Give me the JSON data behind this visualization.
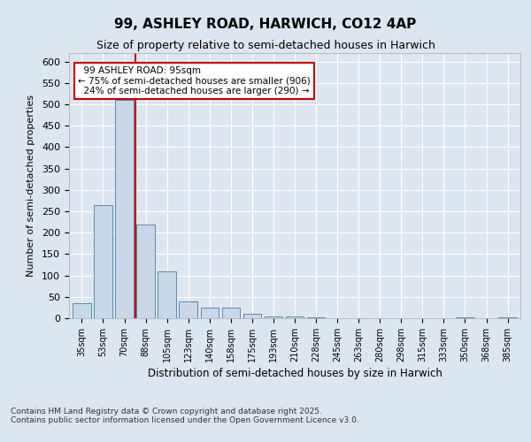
{
  "title_line1": "99, ASHLEY ROAD, HARWICH, CO12 4AP",
  "title_line2": "Size of property relative to semi-detached houses in Harwich",
  "xlabel": "Distribution of semi-detached houses by size in Harwich",
  "ylabel": "Number of semi-detached properties",
  "property_size": 95,
  "property_label": "99 ASHLEY ROAD: 95sqm",
  "pct_smaller": 75,
  "pct_larger": 24,
  "n_smaller": 906,
  "n_larger": 290,
  "bar_color": "#c8d8e8",
  "bar_edge_color": "#5a8ab0",
  "vline_color": "#cc0000",
  "annotation_box_color": "#cc0000",
  "background_color": "#dce6f0",
  "plot_bg_color": "#dce6f0",
  "categories": [
    "35sqm",
    "53sqm",
    "70sqm",
    "88sqm",
    "105sqm",
    "123sqm",
    "140sqm",
    "158sqm",
    "175sqm",
    "193sqm",
    "210sqm",
    "228sqm",
    "245sqm",
    "263sqm",
    "280sqm",
    "298sqm",
    "315sqm",
    "333sqm",
    "350sqm",
    "368sqm",
    "385sqm"
  ],
  "values": [
    35,
    265,
    510,
    220,
    110,
    40,
    25,
    25,
    10,
    5,
    5,
    2,
    0,
    0,
    0,
    0,
    0,
    0,
    2,
    0,
    2
  ],
  "ylim": [
    0,
    620
  ],
  "yticks": [
    0,
    50,
    100,
    150,
    200,
    250,
    300,
    350,
    400,
    450,
    500,
    550,
    600
  ],
  "footnote": "Contains HM Land Registry data © Crown copyright and database right 2025.\nContains public sector information licensed under the Open Government Licence v3.0.",
  "vline_bar_index": 3
}
